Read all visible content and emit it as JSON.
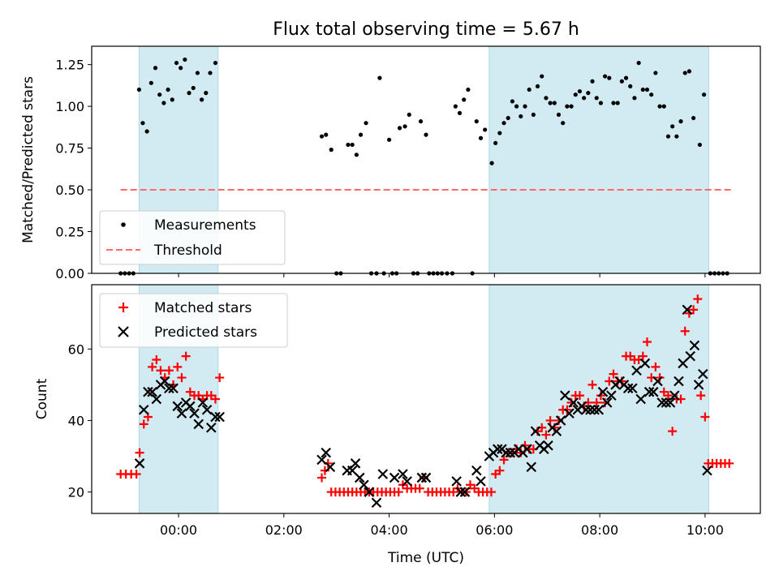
{
  "chart_data": {
    "title": "Flux total observing time = 5.67 h",
    "xlabel": "Time (UTC)",
    "x_units": "hours relative to 00:00 UTC",
    "xlim": [
      -1.65,
      11.05
    ],
    "x_ticks": [
      {
        "value": 0,
        "label": "00:00"
      },
      {
        "value": 2,
        "label": "02:00"
      },
      {
        "value": 4,
        "label": "04:00"
      },
      {
        "value": 6,
        "label": "06:00"
      },
      {
        "value": 8,
        "label": "08:00"
      },
      {
        "value": 10,
        "label": "10:00"
      }
    ],
    "observing_windows": [
      [
        -0.75,
        0.75
      ],
      [
        5.9,
        10.07
      ]
    ],
    "top": {
      "type": "scatter",
      "ylabel": "Matched/Predicted stars",
      "ylim": [
        0,
        1.36
      ],
      "y_ticks": [
        {
          "value": 0,
          "label": "0.00"
        },
        {
          "value": 0.25,
          "label": "0.25"
        },
        {
          "value": 0.5,
          "label": "0.50"
        },
        {
          "value": 0.75,
          "label": "0.75"
        },
        {
          "value": 1.0,
          "label": "1.00"
        },
        {
          "value": 1.25,
          "label": "1.25"
        }
      ],
      "legend": [
        "Measurements",
        "Threshold"
      ],
      "legend_position": "lower-left",
      "threshold": {
        "value": 0.5,
        "x_range": [
          -1.1,
          10.5
        ],
        "color": "#ff6b6b"
      },
      "measurements": [
        [
          -1.1,
          0
        ],
        [
          -1.02,
          0
        ],
        [
          -0.94,
          0
        ],
        [
          -0.86,
          0
        ],
        [
          -0.75,
          1.1
        ],
        [
          -0.68,
          0.9
        ],
        [
          -0.6,
          0.85
        ],
        [
          -0.52,
          1.14
        ],
        [
          -0.44,
          1.23
        ],
        [
          -0.36,
          1.07
        ],
        [
          -0.28,
          1.02
        ],
        [
          -0.2,
          1.1
        ],
        [
          -0.12,
          1.04
        ],
        [
          -0.04,
          1.26
        ],
        [
          0.04,
          1.23
        ],
        [
          0.12,
          1.28
        ],
        [
          0.2,
          1.08
        ],
        [
          0.28,
          1.11
        ],
        [
          0.36,
          1.2
        ],
        [
          0.44,
          1.04
        ],
        [
          0.52,
          1.08
        ],
        [
          0.6,
          1.2
        ],
        [
          0.7,
          1.26
        ],
        [
          2.72,
          0.82
        ],
        [
          2.8,
          0.83
        ],
        [
          2.9,
          0.74
        ],
        [
          3.0,
          0
        ],
        [
          3.08,
          0
        ],
        [
          3.22,
          0.77
        ],
        [
          3.3,
          0.77
        ],
        [
          3.38,
          0.71
        ],
        [
          3.46,
          0.83
        ],
        [
          3.56,
          0.9
        ],
        [
          3.66,
          0
        ],
        [
          3.76,
          0
        ],
        [
          3.82,
          1.17
        ],
        [
          3.9,
          0
        ],
        [
          4.0,
          0.8
        ],
        [
          4.06,
          0
        ],
        [
          4.14,
          0
        ],
        [
          4.2,
          0.87
        ],
        [
          4.3,
          0.88
        ],
        [
          4.38,
          0.95
        ],
        [
          4.46,
          0
        ],
        [
          4.54,
          0
        ],
        [
          4.6,
          0.91
        ],
        [
          4.7,
          0.83
        ],
        [
          4.76,
          0
        ],
        [
          4.84,
          0
        ],
        [
          4.92,
          0
        ],
        [
          5.0,
          0
        ],
        [
          5.1,
          0
        ],
        [
          5.2,
          0
        ],
        [
          5.26,
          1.0
        ],
        [
          5.34,
          0.96
        ],
        [
          5.42,
          1.04
        ],
        [
          5.5,
          1.1
        ],
        [
          5.58,
          0
        ],
        [
          5.66,
          0.91
        ],
        [
          5.74,
          0.81
        ],
        [
          5.82,
          0.86
        ],
        [
          5.95,
          0.66
        ],
        [
          6.02,
          0.78
        ],
        [
          6.1,
          0.84
        ],
        [
          6.18,
          0.9
        ],
        [
          6.26,
          0.93
        ],
        [
          6.34,
          1.03
        ],
        [
          6.42,
          1.0
        ],
        [
          6.5,
          0.94
        ],
        [
          6.58,
          1.0
        ],
        [
          6.66,
          1.1
        ],
        [
          6.74,
          0.95
        ],
        [
          6.82,
          1.12
        ],
        [
          6.9,
          1.18
        ],
        [
          6.98,
          1.05
        ],
        [
          7.06,
          1.02
        ],
        [
          7.14,
          1.02
        ],
        [
          7.22,
          0.95
        ],
        [
          7.3,
          0.9
        ],
        [
          7.38,
          1.0
        ],
        [
          7.46,
          1.0
        ],
        [
          7.54,
          1.07
        ],
        [
          7.62,
          1.09
        ],
        [
          7.7,
          1.05
        ],
        [
          7.78,
          1.08
        ],
        [
          7.86,
          1.15
        ],
        [
          7.94,
          1.05
        ],
        [
          8.02,
          1.02
        ],
        [
          8.1,
          1.18
        ],
        [
          8.18,
          1.17
        ],
        [
          8.26,
          1.02
        ],
        [
          8.34,
          1.02
        ],
        [
          8.42,
          1.15
        ],
        [
          8.5,
          1.17
        ],
        [
          8.58,
          1.12
        ],
        [
          8.66,
          1.05
        ],
        [
          8.74,
          1.26
        ],
        [
          8.82,
          1.1
        ],
        [
          8.9,
          1.1
        ],
        [
          8.98,
          1.07
        ],
        [
          9.06,
          1.2
        ],
        [
          9.14,
          1.0
        ],
        [
          9.22,
          1.0
        ],
        [
          9.3,
          0.82
        ],
        [
          9.38,
          0.88
        ],
        [
          9.46,
          0.82
        ],
        [
          9.54,
          0.91
        ],
        [
          9.62,
          1.2
        ],
        [
          9.7,
          1.21
        ],
        [
          9.78,
          0.93
        ],
        [
          9.9,
          0.77
        ],
        [
          9.98,
          1.07
        ],
        [
          10.1,
          0
        ],
        [
          10.18,
          0
        ],
        [
          10.26,
          0
        ],
        [
          10.34,
          0
        ],
        [
          10.42,
          0
        ]
      ]
    },
    "bottom": {
      "type": "scatter",
      "ylabel": "Count",
      "ylim": [
        14,
        78
      ],
      "y_ticks": [
        {
          "value": 20,
          "label": "20"
        },
        {
          "value": 40,
          "label": "40"
        },
        {
          "value": 60,
          "label": "60"
        }
      ],
      "legend": [
        "Matched stars",
        "Predicted stars"
      ],
      "legend_position": "upper-left",
      "matched": [
        [
          -1.1,
          25
        ],
        [
          -1.0,
          25
        ],
        [
          -0.9,
          25
        ],
        [
          -0.8,
          25
        ],
        [
          -0.74,
          31
        ],
        [
          -0.66,
          39
        ],
        [
          -0.58,
          41
        ],
        [
          -0.5,
          55
        ],
        [
          -0.42,
          57
        ],
        [
          -0.34,
          54
        ],
        [
          -0.26,
          52
        ],
        [
          -0.18,
          54
        ],
        [
          -0.1,
          50
        ],
        [
          -0.02,
          55
        ],
        [
          0.06,
          52
        ],
        [
          0.14,
          58
        ],
        [
          0.22,
          48
        ],
        [
          0.3,
          47
        ],
        [
          0.38,
          47
        ],
        [
          0.46,
          46
        ],
        [
          0.54,
          47
        ],
        [
          0.62,
          47
        ],
        [
          0.7,
          46
        ],
        [
          0.78,
          52
        ],
        [
          2.72,
          24
        ],
        [
          2.78,
          26
        ],
        [
          2.84,
          28
        ],
        [
          2.9,
          20
        ],
        [
          2.98,
          20
        ],
        [
          3.06,
          20
        ],
        [
          3.14,
          20
        ],
        [
          3.22,
          20
        ],
        [
          3.3,
          20
        ],
        [
          3.38,
          20
        ],
        [
          3.46,
          20
        ],
        [
          3.54,
          20
        ],
        [
          3.62,
          20
        ],
        [
          3.7,
          20
        ],
        [
          3.78,
          20
        ],
        [
          3.86,
          20
        ],
        [
          3.94,
          20
        ],
        [
          4.02,
          20
        ],
        [
          4.1,
          20
        ],
        [
          4.18,
          20
        ],
        [
          4.26,
          22
        ],
        [
          4.34,
          21
        ],
        [
          4.42,
          21
        ],
        [
          4.5,
          21
        ],
        [
          4.58,
          21
        ],
        [
          4.66,
          24
        ],
        [
          4.74,
          20
        ],
        [
          4.82,
          20
        ],
        [
          4.9,
          20
        ],
        [
          4.98,
          20
        ],
        [
          5.06,
          20
        ],
        [
          5.14,
          20
        ],
        [
          5.22,
          20
        ],
        [
          5.3,
          21
        ],
        [
          5.38,
          20
        ],
        [
          5.46,
          20
        ],
        [
          5.54,
          22
        ],
        [
          5.62,
          21
        ],
        [
          5.7,
          20
        ],
        [
          5.78,
          20
        ],
        [
          5.86,
          20
        ],
        [
          5.94,
          20
        ],
        [
          6.02,
          25
        ],
        [
          6.1,
          26
        ],
        [
          6.18,
          29
        ],
        [
          6.26,
          31
        ],
        [
          6.34,
          31
        ],
        [
          6.42,
          32
        ],
        [
          6.5,
          31
        ],
        [
          6.58,
          33
        ],
        [
          6.66,
          32
        ],
        [
          6.74,
          32
        ],
        [
          6.82,
          37
        ],
        [
          6.9,
          38
        ],
        [
          6.98,
          36
        ],
        [
          7.06,
          40
        ],
        [
          7.14,
          38
        ],
        [
          7.22,
          40
        ],
        [
          7.3,
          43
        ],
        [
          7.38,
          43
        ],
        [
          7.46,
          45
        ],
        [
          7.54,
          47
        ],
        [
          7.62,
          47
        ],
        [
          7.7,
          44
        ],
        [
          7.78,
          45
        ],
        [
          7.86,
          50
        ],
        [
          7.94,
          45
        ],
        [
          8.02,
          47
        ],
        [
          8.1,
          45
        ],
        [
          8.18,
          51
        ],
        [
          8.26,
          53
        ],
        [
          8.34,
          51
        ],
        [
          8.42,
          51
        ],
        [
          8.5,
          58
        ],
        [
          8.58,
          58
        ],
        [
          8.66,
          57
        ],
        [
          8.74,
          57
        ],
        [
          8.82,
          58
        ],
        [
          8.9,
          62
        ],
        [
          8.98,
          52
        ],
        [
          9.06,
          55
        ],
        [
          9.14,
          52
        ],
        [
          9.22,
          48
        ],
        [
          9.3,
          47
        ],
        [
          9.38,
          37
        ],
        [
          9.46,
          46
        ],
        [
          9.54,
          46
        ],
        [
          9.62,
          65
        ],
        [
          9.7,
          70
        ],
        [
          9.78,
          71
        ],
        [
          9.86,
          74
        ],
        [
          9.92,
          47
        ],
        [
          10.0,
          41
        ],
        [
          10.06,
          28
        ],
        [
          10.14,
          28
        ],
        [
          10.22,
          28
        ],
        [
          10.3,
          28
        ],
        [
          10.38,
          28
        ],
        [
          10.46,
          28
        ]
      ],
      "predicted": [
        [
          -0.74,
          28
        ],
        [
          -0.66,
          43
        ],
        [
          -0.58,
          48
        ],
        [
          -0.5,
          48
        ],
        [
          -0.42,
          46
        ],
        [
          -0.34,
          50
        ],
        [
          -0.26,
          51
        ],
        [
          -0.18,
          49
        ],
        [
          -0.1,
          49
        ],
        [
          -0.02,
          44
        ],
        [
          0.06,
          42
        ],
        [
          0.14,
          45
        ],
        [
          0.22,
          44
        ],
        [
          0.3,
          42
        ],
        [
          0.38,
          39
        ],
        [
          0.46,
          45
        ],
        [
          0.54,
          43
        ],
        [
          0.62,
          38
        ],
        [
          0.7,
          41
        ],
        [
          0.78,
          41
        ],
        [
          2.72,
          29
        ],
        [
          2.8,
          31
        ],
        [
          2.88,
          27
        ],
        [
          3.2,
          26
        ],
        [
          3.3,
          26
        ],
        [
          3.36,
          28
        ],
        [
          3.44,
          24
        ],
        [
          3.52,
          22
        ],
        [
          3.62,
          20
        ],
        [
          3.76,
          17
        ],
        [
          3.88,
          25
        ],
        [
          4.1,
          24
        ],
        [
          4.26,
          25
        ],
        [
          4.34,
          23
        ],
        [
          4.62,
          24
        ],
        [
          4.7,
          24
        ],
        [
          5.28,
          23
        ],
        [
          5.36,
          20
        ],
        [
          5.44,
          20
        ],
        [
          5.66,
          26
        ],
        [
          5.74,
          23
        ],
        [
          5.9,
          30
        ],
        [
          5.98,
          31
        ],
        [
          6.06,
          32
        ],
        [
          6.14,
          32
        ],
        [
          6.22,
          31
        ],
        [
          6.3,
          31
        ],
        [
          6.38,
          31
        ],
        [
          6.46,
          32
        ],
        [
          6.54,
          31
        ],
        [
          6.62,
          32
        ],
        [
          6.7,
          27
        ],
        [
          6.78,
          37
        ],
        [
          6.86,
          33
        ],
        [
          6.94,
          32
        ],
        [
          7.02,
          33
        ],
        [
          7.1,
          38
        ],
        [
          7.18,
          37
        ],
        [
          7.26,
          40
        ],
        [
          7.34,
          47
        ],
        [
          7.42,
          42
        ],
        [
          7.5,
          45
        ],
        [
          7.58,
          43
        ],
        [
          7.66,
          44
        ],
        [
          7.74,
          43
        ],
        [
          7.82,
          43
        ],
        [
          7.9,
          43
        ],
        [
          7.98,
          43
        ],
        [
          8.06,
          48
        ],
        [
          8.14,
          45
        ],
        [
          8.22,
          47
        ],
        [
          8.3,
          50
        ],
        [
          8.38,
          51
        ],
        [
          8.46,
          50
        ],
        [
          8.54,
          49
        ],
        [
          8.62,
          49
        ],
        [
          8.7,
          54
        ],
        [
          8.78,
          46
        ],
        [
          8.86,
          56
        ],
        [
          8.94,
          48
        ],
        [
          9.02,
          48
        ],
        [
          9.1,
          51
        ],
        [
          9.18,
          45
        ],
        [
          9.26,
          45
        ],
        [
          9.34,
          45
        ],
        [
          9.42,
          47
        ],
        [
          9.5,
          51
        ],
        [
          9.58,
          56
        ],
        [
          9.66,
          71
        ],
        [
          9.72,
          58
        ],
        [
          9.8,
          61
        ],
        [
          9.88,
          50
        ],
        [
          9.96,
          53
        ],
        [
          10.04,
          26
        ]
      ]
    }
  },
  "colors": {
    "window_fill": "#add8e6",
    "measurement": "#000000",
    "threshold": "#ff6b6b",
    "matched": "#ff0000",
    "predicted": "#000000"
  }
}
